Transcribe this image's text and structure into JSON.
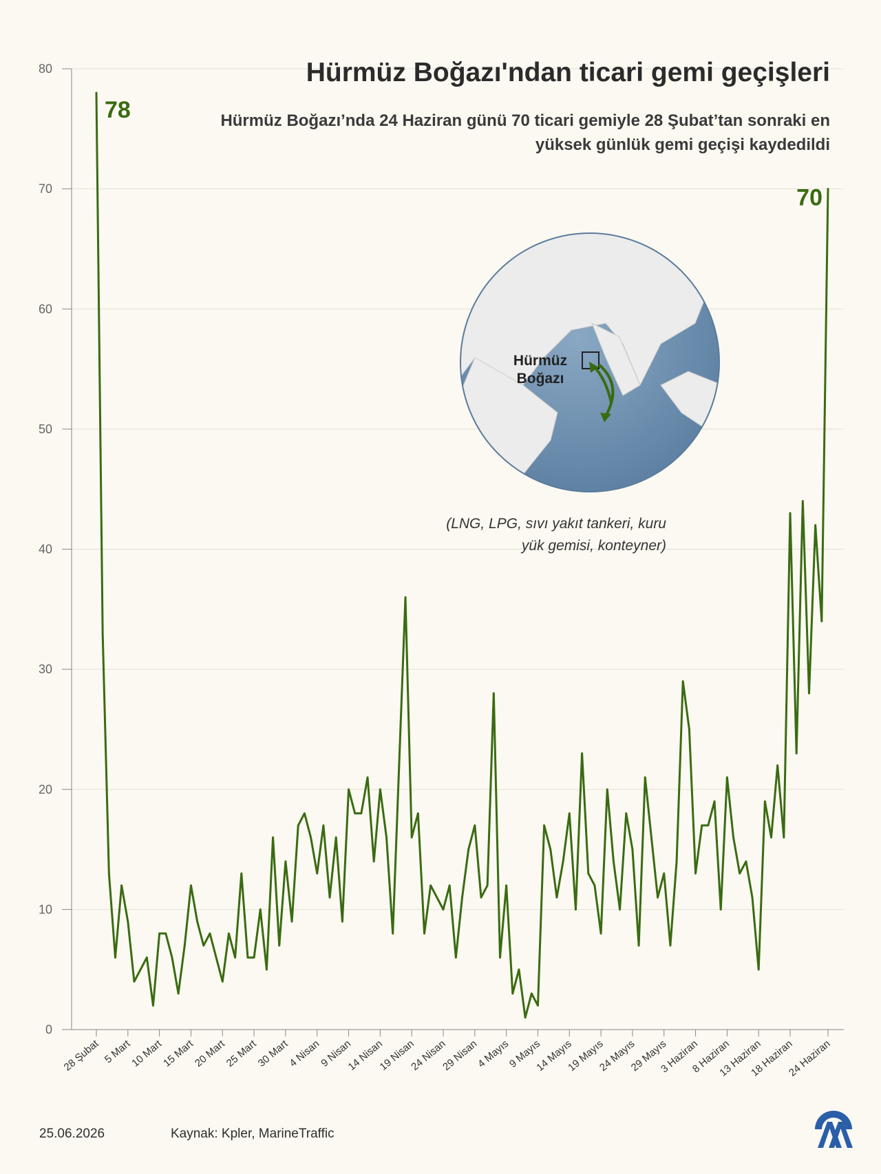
{
  "header": {
    "title": "Hürmüz Boğazı'ndan ticari gemi geçişleri",
    "subtitle": "Hürmüz Boğazı’nda 24 Haziran günü 70 ticari gemiyle 28 Şubat’tan sonraki en yüksek günlük gemi geçişi kaydedildi"
  },
  "map": {
    "label": "Hürmüz Boğazı"
  },
  "note": "(LNG, LPG, sıvı yakıt tankeri, kuru yük gemisi, konteyner)",
  "footer": {
    "date": "25.06.2026",
    "source": "Kaynak: Kpler, MarineTraffic"
  },
  "colors": {
    "line": "#3a6b12",
    "background": "#fbf9f1",
    "grid": "#e2e0d6",
    "ocean": "#6e90b0",
    "land": "#e9e9e9"
  },
  "chart_data": {
    "type": "line",
    "title": "Hürmüz Boğazı'ndan ticari gemi geçişleri",
    "ylim": [
      0,
      80
    ],
    "yticks": [
      0,
      10,
      20,
      30,
      40,
      50,
      60,
      70,
      80
    ],
    "grid": true,
    "xtick_labels": [
      "28 Şubat",
      "5 Mart",
      "10 Mart",
      "15 Mart",
      "20 Mart",
      "25 Mart",
      "30 Mart",
      "4 Nisan",
      "9 Nisan",
      "14 Nisan",
      "19 Nisan",
      "24 Nisan",
      "29 Nisan",
      "4 Mayıs",
      "9 Mayıs",
      "14 Mayıs",
      "19 Mayıs",
      "24 Mayıs",
      "29 Mayıs",
      "3 Haziran",
      "8 Haziran",
      "13 Haziran",
      "18 Haziran",
      "24 Haziran"
    ],
    "xtick_index": [
      0,
      5,
      10,
      15,
      20,
      25,
      30,
      35,
      40,
      45,
      50,
      55,
      60,
      65,
      70,
      75,
      80,
      85,
      90,
      95,
      100,
      105,
      110,
      116
    ],
    "annotations": [
      {
        "index": 0,
        "text": "78"
      },
      {
        "index": 116,
        "text": "70"
      }
    ],
    "series": [
      {
        "values": [
          78,
          33,
          13,
          6,
          12,
          9,
          4,
          5,
          6,
          2,
          8,
          8,
          6,
          3,
          7,
          12,
          9,
          7,
          8,
          6,
          4,
          8,
          6,
          13,
          6,
          6,
          10,
          5,
          16,
          7,
          14,
          9,
          17,
          18,
          16,
          13,
          17,
          11,
          16,
          9,
          20,
          18,
          18,
          21,
          14,
          20,
          16,
          8,
          22,
          36,
          16,
          18,
          8,
          12,
          11,
          10,
          12,
          6,
          11,
          15,
          17,
          11,
          12,
          28,
          6,
          12,
          3,
          5,
          1,
          3,
          2,
          17,
          15,
          11,
          14,
          18,
          10,
          23,
          13,
          12,
          8,
          20,
          14,
          10,
          18,
          15,
          7,
          21,
          16,
          11,
          13,
          7,
          14,
          29,
          25,
          13,
          17,
          17,
          19,
          10,
          21,
          16,
          13,
          14,
          11,
          5,
          19,
          16,
          22,
          16,
          43,
          23,
          44,
          28,
          42,
          34,
          70
        ]
      }
    ]
  }
}
